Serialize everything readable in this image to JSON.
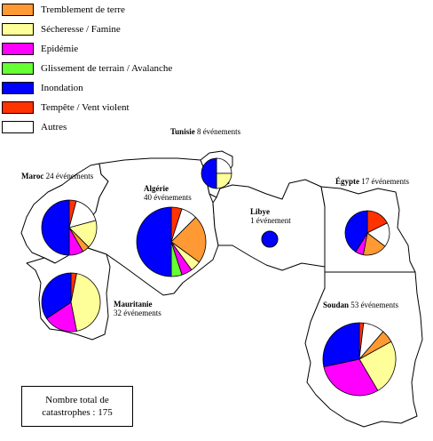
{
  "legend": [
    {
      "label": "Tremblement de terre",
      "color": "#ff9933"
    },
    {
      "label": "Sécheresse / Famine",
      "color": "#ffff99"
    },
    {
      "label": "Epidémie",
      "color": "#ff00ff"
    },
    {
      "label": "Glissement de terrain / Avalanche",
      "color": "#66ff33"
    },
    {
      "label": "Inondation",
      "color": "#0000ff"
    },
    {
      "label": "Tempête / Vent violent",
      "color": "#ff3300"
    },
    {
      "label": "Autres",
      "color": "#ffffff"
    }
  ],
  "countries": {
    "maroc": {
      "name": "Maroc",
      "events": "24 événements",
      "slices": [
        {
          "category": "Tempête / Vent violent",
          "value": 1
        },
        {
          "category": "Autres",
          "value": 4
        },
        {
          "category": "Sécheresse / Famine",
          "value": 4
        },
        {
          "category": "Tremblement de terre",
          "value": 1
        },
        {
          "category": "Epidémie",
          "value": 2
        },
        {
          "category": "Inondation",
          "value": 12
        }
      ]
    },
    "algerie": {
      "name": "Algérie",
      "events": "40 événements",
      "slices": [
        {
          "category": "Tempête / Vent violent",
          "value": 2
        },
        {
          "category": "Autres",
          "value": 3
        },
        {
          "category": "Tremblement de terre",
          "value": 9
        },
        {
          "category": "Sécheresse / Famine",
          "value": 2
        },
        {
          "category": "Epidémie",
          "value": 2
        },
        {
          "category": "Glissement de terrain / Avalanche",
          "value": 2
        },
        {
          "category": "Inondation",
          "value": 20
        }
      ]
    },
    "tunisie": {
      "name": "Tunisie",
      "events": "8 événements",
      "slices": [
        {
          "category": "Autres",
          "value": 2
        },
        {
          "category": "Sécheresse / Famine",
          "value": 2
        },
        {
          "category": "Inondation",
          "value": 4
        }
      ]
    },
    "libye": {
      "name": "Libye",
      "events": "1 événement",
      "slices": [
        {
          "category": "Inondation",
          "value": 1
        }
      ]
    },
    "egypte": {
      "name": "Égypte",
      "events": "17 événements",
      "slices": [
        {
          "category": "Tempête / Vent violent",
          "value": 3
        },
        {
          "category": "Autres",
          "value": 3
        },
        {
          "category": "Tremblement de terre",
          "value": 3
        },
        {
          "category": "Epidémie",
          "value": 1
        },
        {
          "category": "Inondation",
          "value": 7
        }
      ]
    },
    "mauritanie": {
      "name": "Mauritanie",
      "events": "32 événements",
      "slices": [
        {
          "category": "Tempête / Vent violent",
          "value": 1
        },
        {
          "category": "Sécheresse / Famine",
          "value": 14
        },
        {
          "category": "Epidémie",
          "value": 6
        },
        {
          "category": "Inondation",
          "value": 11
        }
      ]
    },
    "soudan": {
      "name": "Soudan",
      "events": "53 événements",
      "slices": [
        {
          "category": "Tempête / Vent violent",
          "value": 1
        },
        {
          "category": "Autres",
          "value": 5
        },
        {
          "category": "Tremblement de terre",
          "value": 3
        },
        {
          "category": "Sécheresse / Famine",
          "value": 13
        },
        {
          "category": "Epidémie",
          "value": 16
        },
        {
          "category": "Inondation",
          "value": 15
        }
      ]
    }
  },
  "total": {
    "line1": "Nombre total de",
    "line2": "catastrophes : 175"
  }
}
